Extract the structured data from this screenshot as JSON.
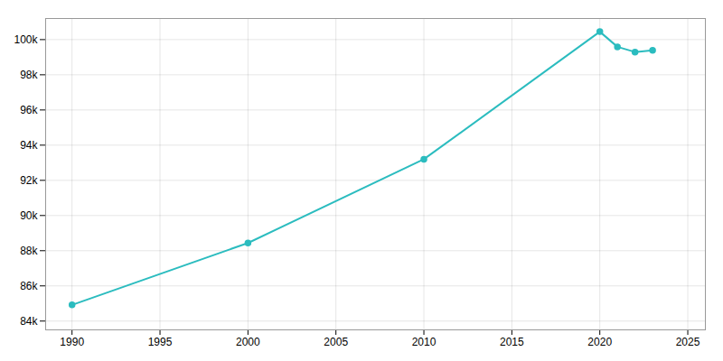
{
  "chart_data": {
    "type": "line",
    "x": [
      1990,
      2000,
      2010,
      2020,
      2021,
      2022,
      2023
    ],
    "values": [
      84920,
      88439,
      93200,
      100450,
      99590,
      99294,
      99392
    ],
    "color": "#2bbcbf",
    "marker": "circle",
    "xlim": [
      1988.5,
      2026
    ],
    "ylim": [
      83500,
      101200
    ],
    "xticks": [
      1990,
      1995,
      2000,
      2005,
      2010,
      2015,
      2020,
      2025
    ],
    "yticks": [
      {
        "value": 84000,
        "label": "84k"
      },
      {
        "value": 86000,
        "label": "86k"
      },
      {
        "value": 88000,
        "label": "88k"
      },
      {
        "value": 90000,
        "label": "90k"
      },
      {
        "value": 92000,
        "label": "92k"
      },
      {
        "value": 94000,
        "label": "94k"
      },
      {
        "value": 96000,
        "label": "96k"
      },
      {
        "value": 98000,
        "label": "98k"
      },
      {
        "value": 100000,
        "label": "100k"
      }
    ],
    "grid": true
  }
}
